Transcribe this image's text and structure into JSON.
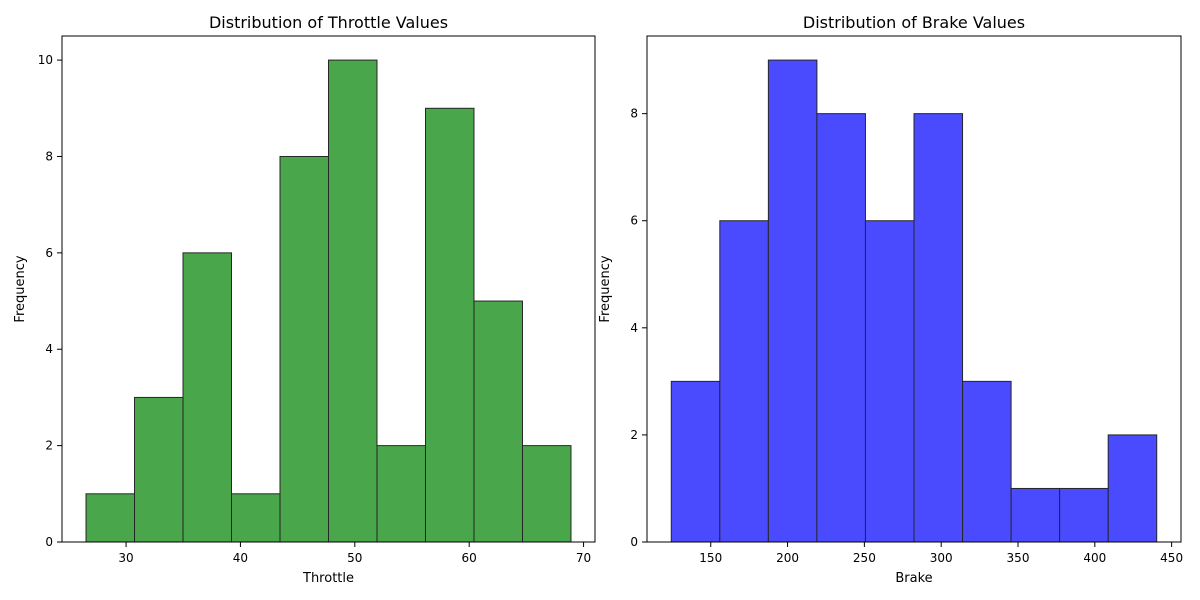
{
  "chart_data": [
    {
      "type": "bar",
      "title": "Distribution of Throttle Values",
      "xlabel": "Throttle",
      "ylabel": "Frequency",
      "bin_edges": [
        26.5,
        30.74,
        34.98,
        39.22,
        43.46,
        47.7,
        51.94,
        56.18,
        60.42,
        64.66,
        68.9
      ],
      "values": [
        1,
        3,
        6,
        1,
        8,
        10,
        2,
        9,
        5,
        2
      ],
      "xlim": [
        24.4,
        71.0
      ],
      "ylim": [
        0,
        10.5
      ],
      "xticks": [
        30,
        40,
        50,
        60,
        70
      ],
      "yticks": [
        0,
        2,
        4,
        6,
        8,
        10
      ],
      "bar_color": "#4aa64a",
      "edge_color": "#262626",
      "grid": false
    },
    {
      "type": "bar",
      "title": "Distribution of Brake Values",
      "xlabel": "Brake",
      "ylabel": "Frequency",
      "bin_edges": [
        124.3,
        155.9,
        187.5,
        219.1,
        250.7,
        282.3,
        313.9,
        345.5,
        377.1,
        408.7,
        440.3
      ],
      "values": [
        3,
        6,
        9,
        8,
        6,
        8,
        3,
        1,
        1,
        2
      ],
      "xlim": [
        108.5,
        456.1
      ],
      "ylim": [
        0,
        9.45
      ],
      "xticks": [
        150,
        200,
        250,
        300,
        350,
        400,
        450
      ],
      "yticks": [
        0,
        2,
        4,
        6,
        8
      ],
      "bar_color": "#4a4aff",
      "edge_color": "#262626",
      "grid": false
    }
  ]
}
